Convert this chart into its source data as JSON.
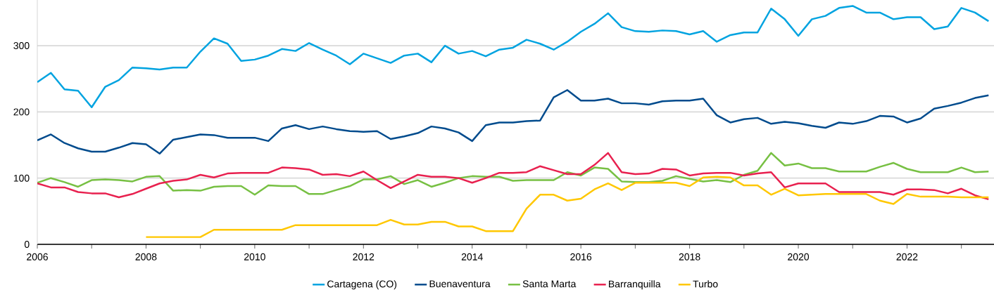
{
  "chart_data": {
    "type": "line",
    "x": [
      2006,
      2006.25,
      2006.5,
      2006.75,
      2007,
      2007.25,
      2007.5,
      2007.75,
      2008,
      2008.25,
      2008.5,
      2008.75,
      2009,
      2009.25,
      2009.5,
      2009.75,
      2010,
      2010.25,
      2010.5,
      2010.75,
      2011,
      2011.25,
      2011.5,
      2011.75,
      2012,
      2012.25,
      2012.5,
      2012.75,
      2013,
      2013.25,
      2013.5,
      2013.75,
      2014,
      2014.25,
      2014.5,
      2014.75,
      2015,
      2015.25,
      2015.5,
      2015.75,
      2016,
      2016.25,
      2016.5,
      2016.75,
      2017,
      2017.25,
      2017.5,
      2017.75,
      2018,
      2018.25,
      2018.5,
      2018.75,
      2019,
      2019.25,
      2019.5,
      2019.75,
      2020,
      2020.25,
      2020.5,
      2020.75,
      2021,
      2021.25,
      2021.5,
      2021.75,
      2022,
      2022.25,
      2022.5,
      2022.75,
      2023,
      2023.25,
      2023.5
    ],
    "series": [
      {
        "name": "Cartagena (CO)",
        "color": "#00a3e0",
        "values": [
          245,
          259,
          234,
          232,
          207,
          238,
          248,
          267,
          266,
          264,
          267,
          267,
          291,
          311,
          303,
          277,
          279,
          285,
          295,
          292,
          304,
          294,
          285,
          272,
          288,
          281,
          274,
          285,
          288,
          275,
          300,
          288,
          292,
          284,
          294,
          297,
          309,
          303,
          294,
          306,
          321,
          333,
          349,
          328,
          322,
          321,
          323,
          322,
          317,
          322,
          306,
          316,
          320,
          320,
          356,
          340,
          315,
          340,
          345,
          357,
          360,
          350,
          350,
          340,
          343,
          343,
          325,
          329,
          357,
          350,
          337
        ]
      },
      {
        "name": "Buenaventura",
        "color": "#004b8d",
        "values": [
          157,
          166,
          153,
          145,
          140,
          140,
          146,
          153,
          151,
          137,
          158,
          162,
          166,
          165,
          161,
          161,
          161,
          156,
          175,
          180,
          174,
          178,
          174,
          171,
          170,
          171,
          159,
          163,
          168,
          178,
          175,
          169,
          156,
          180,
          184,
          184,
          186,
          187,
          222,
          233,
          217,
          217,
          220,
          213,
          213,
          211,
          216,
          217,
          217,
          220,
          195,
          184,
          189,
          191,
          182,
          185,
          183,
          179,
          176,
          184,
          182,
          186,
          194,
          193,
          184,
          190,
          205,
          209,
          214,
          221,
          225
        ]
      },
      {
        "name": "Santa Marta",
        "color": "#77c043",
        "values": [
          93,
          100,
          94,
          87,
          97,
          98,
          97,
          95,
          102,
          103,
          81,
          82,
          81,
          87,
          88,
          88,
          75,
          89,
          88,
          88,
          76,
          76,
          82,
          88,
          98,
          98,
          103,
          91,
          97,
          87,
          93,
          100,
          103,
          102,
          102,
          96,
          97,
          97,
          97,
          109,
          104,
          116,
          114,
          95,
          94,
          94,
          96,
          103,
          99,
          95,
          97,
          94,
          105,
          111,
          138,
          119,
          122,
          115,
          115,
          110,
          110,
          110,
          117,
          123,
          114,
          109,
          109,
          109,
          116,
          109,
          110
        ]
      },
      {
        "name": "Barranquilla",
        "color": "#e8214f",
        "values": [
          92,
          86,
          86,
          79,
          77,
          77,
          71,
          76,
          84,
          92,
          96,
          98,
          105,
          101,
          107,
          108,
          108,
          108,
          116,
          115,
          113,
          105,
          106,
          103,
          110,
          97,
          85,
          95,
          105,
          102,
          102,
          100,
          93,
          100,
          108,
          108,
          109,
          118,
          112,
          106,
          106,
          120,
          138,
          109,
          106,
          107,
          114,
          113,
          104,
          107,
          108,
          108,
          104,
          107,
          109,
          86,
          92,
          92,
          92,
          79,
          79,
          79,
          79,
          75,
          83,
          83,
          82,
          77,
          84,
          74,
          68
        ]
      },
      {
        "name": "Turbo",
        "color": "#ffc700",
        "values": [
          null,
          null,
          null,
          null,
          null,
          null,
          null,
          null,
          11,
          11,
          11,
          11,
          11,
          22,
          22,
          22,
          22,
          22,
          22,
          29,
          29,
          29,
          29,
          29,
          29,
          29,
          37,
          30,
          30,
          34,
          34,
          27,
          27,
          20,
          20,
          20,
          54,
          75,
          75,
          66,
          69,
          83,
          92,
          82,
          93,
          93,
          93,
          93,
          88,
          101,
          102,
          101,
          89,
          89,
          75,
          84,
          74,
          75,
          76,
          76,
          76,
          76,
          66,
          61,
          76,
          72,
          72,
          72,
          71,
          71,
          71
        ]
      }
    ],
    "xlim": [
      2006,
      2023.6
    ],
    "xticks": [
      2006,
      {
        "value": 2007,
        "label": null
      },
      2008,
      {
        "value": 2009,
        "label": null
      },
      2010,
      {
        "value": 2011,
        "label": null
      },
      2012,
      {
        "value": 2013,
        "label": null
      },
      2014,
      {
        "value": 2015,
        "label": null
      },
      2016,
      {
        "value": 2017,
        "label": null
      },
      2018,
      {
        "value": 2019,
        "label": null
      },
      2020,
      {
        "value": 2021,
        "label": null
      },
      2022,
      {
        "value": 2023,
        "label": null
      }
    ],
    "ylim": [
      0,
      369
    ],
    "yticks": [
      0,
      100,
      200,
      300
    ],
    "grid": "y",
    "legend": "bottom",
    "marker": "none",
    "line_style": "solid"
  }
}
